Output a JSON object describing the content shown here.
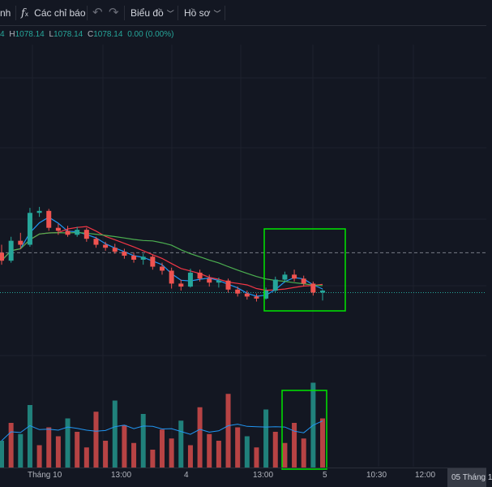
{
  "toolbar": {
    "symbol_partial": "nh",
    "indicators_label": "Các chỉ báo",
    "chart_label": "Biểu đồ",
    "profile_label": "Hồ sơ"
  },
  "ohlc": {
    "o_val": "4",
    "h_key": "H",
    "h_val": "1078.14",
    "l_key": "L",
    "l_val": "1078.14",
    "c_key": "C",
    "c_val": "1078.14",
    "change": "0.00 (0.00%)"
  },
  "time_axis": {
    "labels": [
      "Tháng 10",
      "13:00",
      "4",
      "13:00",
      "5",
      "10:30",
      "12:00"
    ],
    "selected_date": "05 Tháng 1"
  },
  "colors": {
    "up": "#26a69a",
    "down": "#ef5350",
    "ma_fast": "#2196f3",
    "ma_mid": "#f23645",
    "ma_slow": "#4caf50",
    "highlight": "#00e600"
  },
  "chart_data": {
    "type": "candlestick",
    "candles": [
      [
        1081.0,
        1081.8,
        1079.8,
        1080.2
      ],
      [
        1080.2,
        1082.6,
        1080.0,
        1082.2
      ],
      [
        1082.2,
        1083.0,
        1081.4,
        1081.8
      ],
      [
        1081.8,
        1085.5,
        1081.6,
        1085.0
      ],
      [
        1085.0,
        1085.6,
        1084.6,
        1085.2
      ],
      [
        1085.2,
        1085.4,
        1083.2,
        1083.5
      ],
      [
        1083.5,
        1083.9,
        1082.8,
        1083.2
      ],
      [
        1083.2,
        1083.7,
        1082.6,
        1082.8
      ],
      [
        1082.8,
        1083.6,
        1082.6,
        1083.3
      ],
      [
        1083.3,
        1083.5,
        1082.1,
        1082.4
      ],
      [
        1082.4,
        1082.6,
        1081.5,
        1081.8
      ],
      [
        1081.8,
        1082.1,
        1081.2,
        1081.5
      ],
      [
        1081.5,
        1081.9,
        1080.9,
        1081.1
      ],
      [
        1081.1,
        1081.4,
        1080.4,
        1080.7
      ],
      [
        1080.7,
        1081.0,
        1080.0,
        1080.3
      ],
      [
        1080.3,
        1080.9,
        1079.8,
        1080.6
      ],
      [
        1080.6,
        1080.8,
        1079.3,
        1079.6
      ],
      [
        1079.6,
        1080.0,
        1078.8,
        1079.2
      ],
      [
        1079.2,
        1079.5,
        1077.4,
        1077.9
      ],
      [
        1077.9,
        1078.3,
        1077.2,
        1077.6
      ],
      [
        1077.6,
        1079.4,
        1077.5,
        1079.0
      ],
      [
        1079.0,
        1079.3,
        1078.1,
        1078.4
      ],
      [
        1078.4,
        1078.8,
        1077.6,
        1078.0
      ],
      [
        1078.0,
        1078.5,
        1077.5,
        1078.2
      ],
      [
        1078.2,
        1078.4,
        1077.0,
        1077.3
      ],
      [
        1077.3,
        1077.6,
        1076.6,
        1076.9
      ],
      [
        1076.9,
        1077.2,
        1076.3,
        1076.6
      ],
      [
        1076.6,
        1076.9,
        1076.1,
        1076.4
      ],
      [
        1076.4,
        1077.5,
        1076.3,
        1077.2
      ],
      [
        1077.2,
        1078.6,
        1077.0,
        1078.3
      ],
      [
        1078.3,
        1079.1,
        1078.0,
        1078.8
      ],
      [
        1078.8,
        1079.3,
        1078.1,
        1078.4
      ],
      [
        1078.4,
        1078.7,
        1077.6,
        1077.9
      ],
      [
        1077.9,
        1078.1,
        1076.7,
        1077.0
      ],
      [
        1077.0,
        1077.3,
        1076.2,
        1077.2
      ]
    ],
    "volume": [
      [
        12,
        1
      ],
      [
        20,
        0
      ],
      [
        15,
        1
      ],
      [
        28,
        1
      ],
      [
        10,
        0
      ],
      [
        18,
        0
      ],
      [
        14,
        0
      ],
      [
        22,
        1
      ],
      [
        16,
        0
      ],
      [
        9,
        0
      ],
      [
        25,
        0
      ],
      [
        12,
        0
      ],
      [
        30,
        1
      ],
      [
        19,
        0
      ],
      [
        11,
        0
      ],
      [
        24,
        1
      ],
      [
        8,
        0
      ],
      [
        17,
        0
      ],
      [
        13,
        0
      ],
      [
        21,
        1
      ],
      [
        10,
        0
      ],
      [
        27,
        0
      ],
      [
        15,
        0
      ],
      [
        12,
        0
      ],
      [
        33,
        0
      ],
      [
        18,
        0
      ],
      [
        14,
        1
      ],
      [
        9,
        0
      ],
      [
        26,
        1
      ],
      [
        16,
        0
      ],
      [
        11,
        0
      ],
      [
        20,
        0
      ],
      [
        13,
        0
      ],
      [
        38,
        1
      ],
      [
        22,
        0
      ]
    ],
    "price_levels": {
      "dashed_ref": 1081.0,
      "dotted_last": 1077.0
    }
  }
}
